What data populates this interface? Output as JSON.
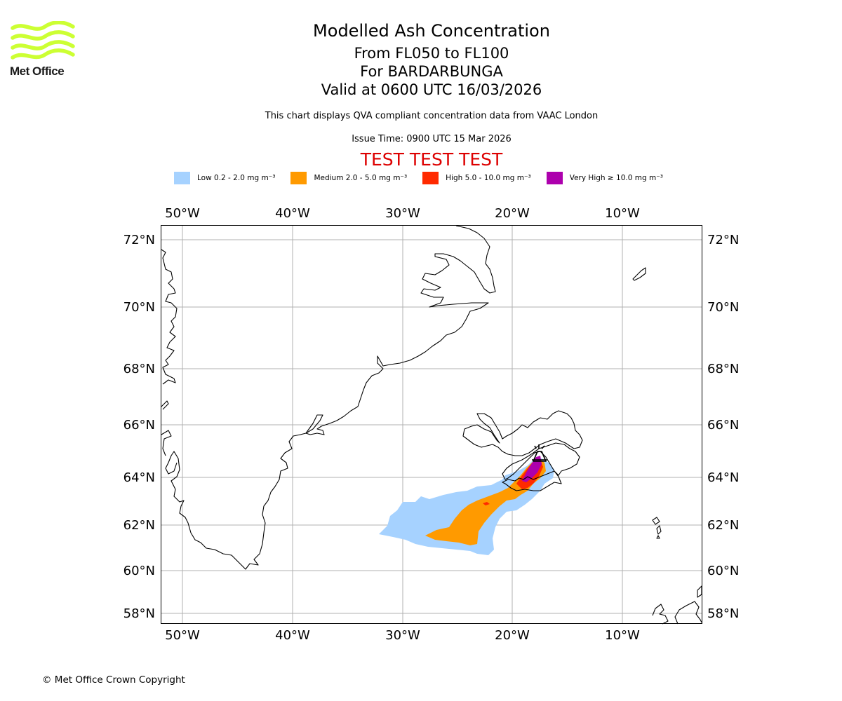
{
  "header": {
    "title": "Modelled Ash Concentration",
    "level_range": "From FL050 to FL100",
    "volcano": "For BARDARBUNGA",
    "valid_time": "Valid at 0600 UTC 16/03/2026",
    "info": "This chart displays QVA compliant concentration data from VAAC London",
    "issue_time": "Issue Time: 0900 UTC 15 Mar 2026",
    "test_banner": "TEST TEST TEST"
  },
  "logo": {
    "text": "Met Office",
    "color": "#ccff33"
  },
  "legend": [
    {
      "label": "Low 0.2 - 2.0 mg m⁻³",
      "color": "#a6d2ff"
    },
    {
      "label": "Medium 2.0 - 5.0 mg m⁻³",
      "color": "#ff9a00"
    },
    {
      "label": "High 5.0 - 10.0 mg m⁻³",
      "color": "#ff2a00"
    },
    {
      "label": "Very High ≥ 10.0 mg m⁻³",
      "color": "#ad00ad"
    }
  ],
  "map": {
    "lon_labels": [
      "50°W",
      "40°W",
      "30°W",
      "20°W",
      "10°W"
    ],
    "lat_labels": [
      "72°N",
      "70°N",
      "68°N",
      "66°N",
      "64°N",
      "62°N",
      "60°N",
      "58°N"
    ]
  },
  "footer": {
    "copyright": "© Met Office Crown Copyright"
  }
}
